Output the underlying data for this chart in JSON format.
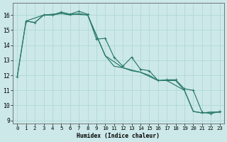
{
  "xlabel": "Humidex (Indice chaleur)",
  "xlim": [
    -0.5,
    23.5
  ],
  "ylim": [
    8.8,
    16.8
  ],
  "yticks": [
    9,
    10,
    11,
    12,
    13,
    14,
    15,
    16
  ],
  "xticks": [
    0,
    1,
    2,
    3,
    4,
    5,
    6,
    7,
    8,
    9,
    10,
    11,
    12,
    13,
    14,
    15,
    16,
    17,
    18,
    19,
    20,
    21,
    22,
    23
  ],
  "background_color": "#cce8e8",
  "grid_color": "#b0d8d8",
  "line_color": "#2a7a6a",
  "line1_x": [
    0,
    1,
    2,
    3,
    4,
    5,
    6,
    7,
    8,
    9,
    10,
    11,
    12,
    13,
    14,
    15,
    16,
    17,
    18,
    19,
    20,
    21,
    22,
    23
  ],
  "line1_y": [
    11.9,
    15.6,
    15.5,
    16.0,
    16.0,
    16.2,
    16.05,
    16.25,
    16.05,
    14.4,
    14.45,
    13.2,
    12.6,
    13.2,
    12.4,
    12.3,
    11.65,
    11.7,
    11.7,
    11.1,
    11.0,
    9.55,
    9.45,
    9.6
  ],
  "line2_x": [
    1,
    2,
    3,
    4,
    5,
    6,
    7,
    8,
    10,
    11,
    12,
    13,
    14,
    15,
    16,
    17,
    18,
    19,
    20,
    21,
    22,
    23
  ],
  "line2_y": [
    15.6,
    15.5,
    16.0,
    16.0,
    16.1,
    16.0,
    16.1,
    16.0,
    13.3,
    12.6,
    12.5,
    12.3,
    12.2,
    12.0,
    11.65,
    11.65,
    11.65,
    11.0,
    9.6,
    9.5,
    9.55,
    9.55
  ],
  "line3_x": [
    0,
    1,
    3,
    5,
    8,
    10,
    12,
    14,
    16,
    17,
    19,
    20,
    21,
    22,
    23
  ],
  "line3_y": [
    11.9,
    15.6,
    16.0,
    16.1,
    16.0,
    13.3,
    12.5,
    12.2,
    11.65,
    11.65,
    11.0,
    9.6,
    9.5,
    9.55,
    9.55
  ]
}
